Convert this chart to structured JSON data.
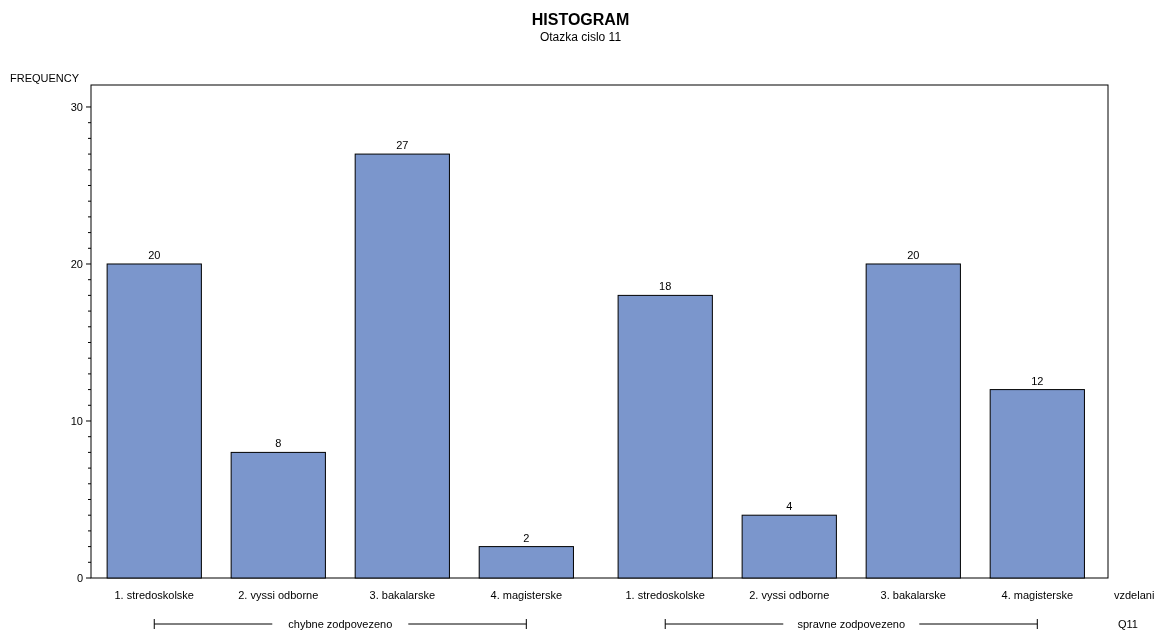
{
  "chart_data": {
    "type": "bar",
    "title": "HISTOGRAM",
    "subtitle": "Otazka cislo 11",
    "ylabel": "FREQUENCY",
    "xlabel": "vzdelani",
    "categories": [
      "1. stredoskolske",
      "2. vyssi odborne",
      "3. bakalarske",
      "4. magisterske",
      "1. stredoskolske",
      "2. vyssi odborne",
      "3. bakalarske",
      "4. magisterske"
    ],
    "values": [
      20,
      8,
      27,
      2,
      18,
      4,
      20,
      12
    ],
    "color": "#7b96cc",
    "data_labels": true,
    "ylim": [
      0,
      31.4
    ],
    "yticks": [
      0,
      {
        "value": 1,
        "label": null
      },
      {
        "value": 2,
        "label": null
      },
      {
        "value": 3,
        "label": null
      },
      {
        "value": 4,
        "label": null
      },
      {
        "value": 5,
        "label": null
      },
      {
        "value": 6,
        "label": null
      },
      {
        "value": 7,
        "label": null
      },
      {
        "value": 8,
        "label": null
      },
      {
        "value": 9,
        "label": null
      },
      10,
      {
        "value": 11,
        "label": null
      },
      {
        "value": 12,
        "label": null
      },
      {
        "value": 13,
        "label": null
      },
      {
        "value": 14,
        "label": null
      },
      {
        "value": 15,
        "label": null
      },
      {
        "value": 16,
        "label": null
      },
      {
        "value": 17,
        "label": null
      },
      {
        "value": 18,
        "label": null
      },
      {
        "value": 19,
        "label": null
      },
      20,
      {
        "value": 21,
        "label": null
      },
      {
        "value": 22,
        "label": null
      },
      {
        "value": 23,
        "label": null
      },
      {
        "value": 24,
        "label": null
      },
      {
        "value": 25,
        "label": null
      },
      {
        "value": 26,
        "label": null
      },
      {
        "value": 27,
        "label": null
      },
      {
        "value": 28,
        "label": null
      },
      {
        "value": 29,
        "label": null
      },
      30
    ],
    "annotations": [
      "chybne zodpovezeno",
      "spravne zodpovezeno",
      "Q11"
    ],
    "grid": false
  }
}
